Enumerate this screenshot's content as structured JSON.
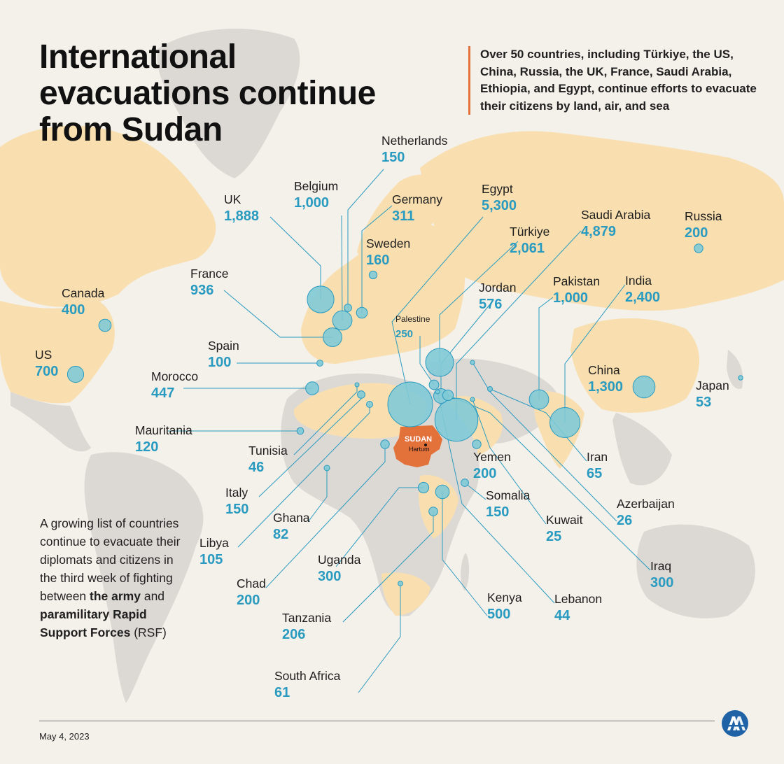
{
  "title_lines": [
    "International",
    "evacuations continue",
    "from Sudan"
  ],
  "intro": "Over 50 countries, including Türkiye, the US, China, Russia, the UK, France, Saudi Arabia, Ethiopia, and Egypt, continue efforts to evacuate their citizens by land, air, and sea",
  "side_note": {
    "p1": "A growing list of countries continue to evacuate their diplomats and citizens in the third week of fighting between ",
    "b1": "the army",
    "p2": " and ",
    "b2": "paramilitary Rapid Support Forces",
    "p3": " (RSF)"
  },
  "date": "May 4, 2023",
  "sudan_label": "SUDAN",
  "capital_label": "Hartum",
  "colors": {
    "background": "#f4f0ea",
    "land_highlight": "#f9dfb0",
    "land_other": "#dcd8d4",
    "sudan": "#e2713a",
    "bubble": "#7fcad6",
    "leader": "#2a9bc0",
    "value_text": "#2a9bc0",
    "accent_rule": "#e2713a"
  },
  "icons": [
    "aa-logo-icon"
  ],
  "countries": [
    {
      "name": "Netherlands",
      "value": "150"
    },
    {
      "name": "Belgium",
      "value": "1,000"
    },
    {
      "name": "Germany",
      "value": "311"
    },
    {
      "name": "Egypt",
      "value": "5,300"
    },
    {
      "name": "UK",
      "value": "1,888"
    },
    {
      "name": "Saudi Arabia",
      "value": "4,879"
    },
    {
      "name": "Russia",
      "value": "200"
    },
    {
      "name": "Türkiye",
      "value": "2,061"
    },
    {
      "name": "Sweden",
      "value": "160"
    },
    {
      "name": "France",
      "value": "936"
    },
    {
      "name": "Canada",
      "value": "400"
    },
    {
      "name": "Jordan",
      "value": "576"
    },
    {
      "name": "Pakistan",
      "value": "1,000"
    },
    {
      "name": "India",
      "value": "2,400"
    },
    {
      "name": "Palestine",
      "value": "250"
    },
    {
      "name": "US",
      "value": "700"
    },
    {
      "name": "Spain",
      "value": "100"
    },
    {
      "name": "Morocco",
      "value": "447"
    },
    {
      "name": "China",
      "value": "1,300"
    },
    {
      "name": "Japan",
      "value": "53"
    },
    {
      "name": "Mauritania",
      "value": "120"
    },
    {
      "name": "Tunisia",
      "value": "46"
    },
    {
      "name": "Iran",
      "value": "65"
    },
    {
      "name": "Yemen",
      "value": "200"
    },
    {
      "name": "Italy",
      "value": "150"
    },
    {
      "name": "Azerbaijan",
      "value": "26"
    },
    {
      "name": "Somalia",
      "value": "150"
    },
    {
      "name": "Ghana",
      "value": "82"
    },
    {
      "name": "Kuwait",
      "value": "25"
    },
    {
      "name": "Libya",
      "value": "105"
    },
    {
      "name": "Iraq",
      "value": "300"
    },
    {
      "name": "Uganda",
      "value": "300"
    },
    {
      "name": "Chad",
      "value": "200"
    },
    {
      "name": "Kenya",
      "value": "500"
    },
    {
      "name": "Lebanon",
      "value": "44"
    },
    {
      "name": "Tanzania",
      "value": "206"
    },
    {
      "name": "South Africa",
      "value": "61"
    }
  ]
}
